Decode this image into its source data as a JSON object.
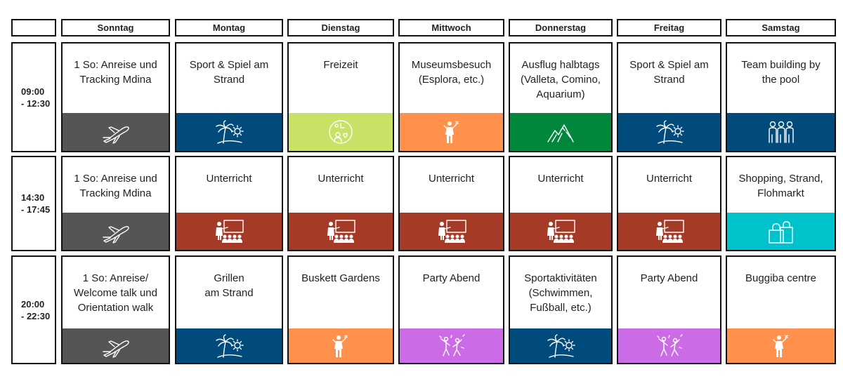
{
  "days": [
    "Sonntag",
    "Montag",
    "Dienstag",
    "Mittwoch",
    "Donnerstag",
    "Freitag",
    "Samstag"
  ],
  "rows": [
    {
      "time_start": "09:00",
      "time_end": "- 12:30",
      "cells": [
        {
          "text": "1 So: Anreise und\nTracking Mdina",
          "color": "#555555",
          "icon": "airplane-icon"
        },
        {
          "text": "Sport & Spiel am\nStrand",
          "color": "#004a7c",
          "icon": "palm-beach-icon"
        },
        {
          "text": "Freizeit",
          "color": "#c9e265",
          "icon": "leisure-icon"
        },
        {
          "text": "Museumsbesuch\n(Esplora, etc.)",
          "color": "#ff914d",
          "icon": "person-waving-icon"
        },
        {
          "text": "Ausflug halbtags\n(Valleta, Comino,\nAquarium)",
          "color": "#00873c",
          "icon": "mountain-icon"
        },
        {
          "text": "Sport & Spiel am\nStrand",
          "color": "#004a7c",
          "icon": "palm-beach-icon"
        },
        {
          "text": "Team building by\nthe pool",
          "color": "#004a7c",
          "icon": "team-icon"
        }
      ]
    },
    {
      "time_start": "14:30",
      "time_end": "- 17:45",
      "cells": [
        {
          "text": "1 So: Anreise und\nTracking Mdina",
          "color": "#555555",
          "icon": "airplane-icon"
        },
        {
          "text": "Unterricht",
          "color": "#a53b26",
          "icon": "classroom-icon"
        },
        {
          "text": "Unterricht",
          "color": "#a53b26",
          "icon": "classroom-icon"
        },
        {
          "text": "Unterricht",
          "color": "#a53b26",
          "icon": "classroom-icon"
        },
        {
          "text": "Unterricht",
          "color": "#a53b26",
          "icon": "classroom-icon"
        },
        {
          "text": "Unterricht",
          "color": "#a53b26",
          "icon": "classroom-icon"
        },
        {
          "text": "Shopping, Strand,\nFlohmarkt",
          "color": "#00c2cb",
          "icon": "shopping-bag-icon"
        }
      ]
    },
    {
      "time_start": "20:00",
      "time_end": "- 22:30",
      "cells": [
        {
          "text": "1 So: Anreise/\nWelcome talk und\nOrientation walk",
          "color": "#555555",
          "icon": "airplane-icon"
        },
        {
          "text": "Grillen\nam Strand",
          "color": "#004a7c",
          "icon": "palm-beach-icon"
        },
        {
          "text": "Buskett Gardens",
          "color": "#ff914d",
          "icon": "person-waving-icon"
        },
        {
          "text": "Party Abend",
          "color": "#cb6ce6",
          "icon": "party-icon"
        },
        {
          "text": "Sportaktivitäten\n(Schwimmen,\nFußball, etc.)",
          "color": "#004a7c",
          "icon": "palm-beach-icon"
        },
        {
          "text": "Party Abend",
          "color": "#cb6ce6",
          "icon": "party-icon"
        },
        {
          "text": "Buggiba centre",
          "color": "#ff914d",
          "icon": "person-waving-icon"
        }
      ]
    }
  ]
}
